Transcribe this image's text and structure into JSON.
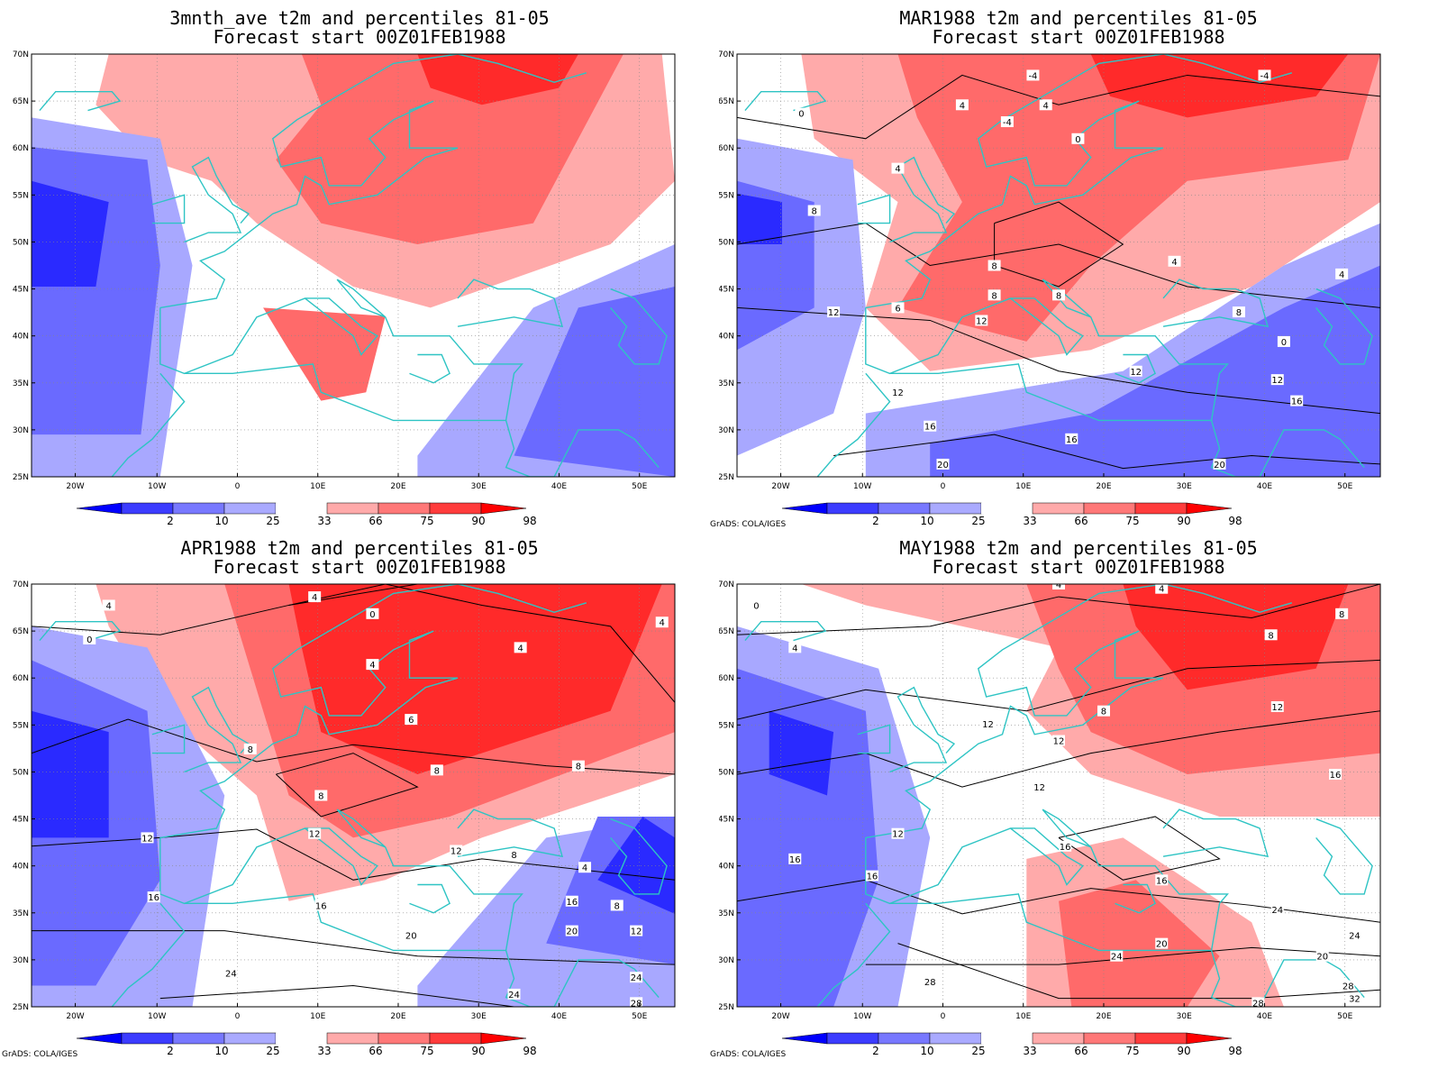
{
  "credit": "GrADS: COLA/IGES",
  "axes": {
    "lon_labels": [
      "20W",
      "10W",
      "0",
      "10E",
      "20E",
      "30E",
      "40E",
      "50E"
    ],
    "lat_labels": [
      "70N",
      "65N",
      "60N",
      "55N",
      "50N",
      "45N",
      "40N",
      "35N",
      "30N",
      "25N"
    ]
  },
  "colorbar": {
    "labels": [
      "2",
      "10",
      "25",
      "33",
      "66",
      "75",
      "90",
      "98"
    ],
    "colors": [
      "#0000ff",
      "#3c3cff",
      "#7878ff",
      "#aaaaff",
      "#ffffff",
      "#ffaaaa",
      "#ff7878",
      "#ff3c3c",
      "#ff0000"
    ]
  },
  "colors": {
    "coastline": "#2ec4c4",
    "contour": "#000000",
    "deep_blue": "#2a2aff",
    "mid_blue": "#6a6aff",
    "light_blue": "#a8a8ff",
    "light_red": "#ffaaaa",
    "mid_red": "#ff6a6a",
    "deep_red": "#ff2a2a"
  },
  "panels": [
    {
      "title1": "3mnth_ave t2m and percentiles 81-05",
      "title2": "Forecast start 00Z01FEB1988",
      "contour_labels": []
    },
    {
      "title1": "MAR1988 t2m and percentiles 81-05",
      "title2": "Forecast start 00Z01FEB1988",
      "contour_labels": [
        "-4",
        "-4",
        "-4",
        "0",
        "0",
        "4",
        "4",
        "4",
        "4",
        "8",
        "8",
        "8",
        "12",
        "12",
        "12",
        "12",
        "12",
        "16",
        "16",
        "16",
        "20",
        "20",
        "4",
        "0",
        "8",
        "6",
        "8"
      ]
    },
    {
      "title1": "APR1988 t2m and percentiles 81-05",
      "title2": "Forecast start 00Z01FEB1988",
      "contour_labels": [
        "0",
        "4",
        "4",
        "0",
        "4",
        "4",
        "6",
        "8",
        "8",
        "8",
        "8",
        "12",
        "12",
        "12",
        "8",
        "4",
        "16",
        "16",
        "20",
        "16",
        "20",
        "24",
        "24",
        "24",
        "28",
        "12",
        "8",
        "4"
      ]
    },
    {
      "title1": "MAY1988 t2m and percentiles 81-05",
      "title2": "Forecast start 00Z01FEB1988",
      "contour_labels": [
        "0",
        "4",
        "4",
        "8",
        "8",
        "8",
        "12",
        "12",
        "12",
        "12",
        "12",
        "16",
        "16",
        "16",
        "16",
        "20",
        "24",
        "24",
        "20",
        "24",
        "28",
        "28",
        "28",
        "32",
        "16",
        "4"
      ]
    }
  ]
}
